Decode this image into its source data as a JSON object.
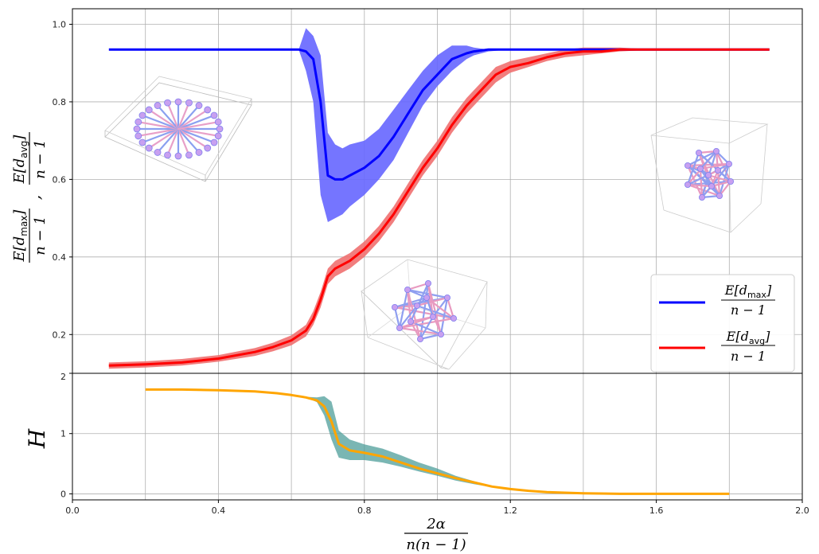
{
  "chart_data": [
    {
      "type": "line",
      "panel": "top",
      "grid": true,
      "xlim": [
        0.0,
        2.0
      ],
      "ylim": [
        0.1,
        1.04
      ],
      "yticks": [
        "0.2",
        "0.4",
        "0.6",
        "0.8",
        "1.0"
      ],
      "ylabel": {
        "num1": "E[d",
        "sub1": "max",
        "close1": "]",
        "den": "n − 1",
        "sep": ",",
        "num2": "E[d",
        "sub2": "avg",
        "close2": "]"
      },
      "legend_position": "lower-right",
      "series": [
        {
          "name": {
            "num": "E[d",
            "sub": "max",
            "close": "]",
            "den": "n − 1"
          },
          "color": "#0000ff",
          "band_color": "#6666ff",
          "x": [
            0.1,
            0.2,
            0.3,
            0.4,
            0.5,
            0.6,
            0.62,
            0.64,
            0.66,
            0.68,
            0.7,
            0.72,
            0.74,
            0.76,
            0.8,
            0.84,
            0.88,
            0.92,
            0.96,
            1.0,
            1.04,
            1.08,
            1.1,
            1.14,
            1.2,
            1.3,
            1.4,
            1.5,
            1.6,
            1.7,
            1.8,
            1.91
          ],
          "y": [
            0.935,
            0.935,
            0.935,
            0.935,
            0.935,
            0.935,
            0.935,
            0.93,
            0.91,
            0.8,
            0.61,
            0.6,
            0.6,
            0.61,
            0.63,
            0.66,
            0.71,
            0.77,
            0.83,
            0.87,
            0.91,
            0.925,
            0.93,
            0.935,
            0.935,
            0.935,
            0.935,
            0.935,
            0.935,
            0.935,
            0.935,
            0.935
          ],
          "lower": [
            0.935,
            0.935,
            0.935,
            0.935,
            0.935,
            0.935,
            0.935,
            0.88,
            0.8,
            0.56,
            0.49,
            0.5,
            0.51,
            0.53,
            0.56,
            0.6,
            0.65,
            0.72,
            0.79,
            0.84,
            0.88,
            0.91,
            0.92,
            0.93,
            0.935,
            0.935,
            0.935,
            0.935,
            0.935,
            0.935,
            0.935,
            0.935
          ],
          "upper": [
            0.935,
            0.935,
            0.935,
            0.935,
            0.935,
            0.935,
            0.935,
            0.99,
            0.97,
            0.92,
            0.72,
            0.69,
            0.68,
            0.69,
            0.7,
            0.73,
            0.78,
            0.83,
            0.88,
            0.92,
            0.945,
            0.945,
            0.94,
            0.935,
            0.935,
            0.935,
            0.935,
            0.935,
            0.935,
            0.935,
            0.935,
            0.935
          ]
        },
        {
          "name": {
            "num": "E[d",
            "sub": "avg",
            "close": "]",
            "den": "n − 1"
          },
          "color": "#ff0000",
          "band_color": "#f07070",
          "x": [
            0.1,
            0.2,
            0.3,
            0.4,
            0.5,
            0.55,
            0.6,
            0.64,
            0.66,
            0.68,
            0.7,
            0.72,
            0.76,
            0.8,
            0.84,
            0.88,
            0.92,
            0.96,
            1.0,
            1.04,
            1.08,
            1.12,
            1.16,
            1.2,
            1.25,
            1.3,
            1.35,
            1.4,
            1.45,
            1.5,
            1.6,
            1.7,
            1.8,
            1.91
          ],
          "y": [
            0.12,
            0.123,
            0.128,
            0.138,
            0.155,
            0.168,
            0.185,
            0.21,
            0.24,
            0.29,
            0.35,
            0.37,
            0.39,
            0.42,
            0.46,
            0.51,
            0.57,
            0.63,
            0.68,
            0.74,
            0.79,
            0.83,
            0.87,
            0.89,
            0.9,
            0.915,
            0.925,
            0.93,
            0.93,
            0.935,
            0.935,
            0.935,
            0.935,
            0.935
          ],
          "lower": [
            0.112,
            0.115,
            0.12,
            0.13,
            0.145,
            0.157,
            0.172,
            0.195,
            0.225,
            0.27,
            0.33,
            0.35,
            0.37,
            0.4,
            0.44,
            0.49,
            0.55,
            0.61,
            0.66,
            0.72,
            0.77,
            0.81,
            0.85,
            0.875,
            0.89,
            0.905,
            0.915,
            0.92,
            0.925,
            0.93,
            0.935,
            0.935,
            0.935,
            0.935
          ],
          "upper": [
            0.128,
            0.131,
            0.137,
            0.147,
            0.165,
            0.179,
            0.198,
            0.225,
            0.26,
            0.31,
            0.37,
            0.39,
            0.41,
            0.44,
            0.48,
            0.53,
            0.59,
            0.65,
            0.7,
            0.76,
            0.81,
            0.85,
            0.89,
            0.905,
            0.915,
            0.925,
            0.935,
            0.94,
            0.94,
            0.94,
            0.935,
            0.935,
            0.935,
            0.935
          ]
        }
      ]
    },
    {
      "type": "line",
      "panel": "bottom",
      "grid": true,
      "xlim": [
        0.0,
        2.0
      ],
      "ylim": [
        -0.1,
        2.0
      ],
      "xticks": [
        "0.0",
        "0.4",
        "0.8",
        "1.2",
        "1.6",
        "2.0"
      ],
      "yticks": [
        "0",
        "1",
        "2"
      ],
      "ylabel": "H",
      "xlabel": {
        "num": "2α",
        "den": "n(n − 1)"
      },
      "series": [
        {
          "color": "#ffa500",
          "band_color": "#4e9e9a",
          "x": [
            0.2,
            0.3,
            0.4,
            0.5,
            0.56,
            0.6,
            0.64,
            0.67,
            0.69,
            0.71,
            0.73,
            0.76,
            0.8,
            0.85,
            0.9,
            0.95,
            1.0,
            1.05,
            1.1,
            1.15,
            1.2,
            1.25,
            1.3,
            1.4,
            1.5,
            1.6,
            1.7,
            1.8
          ],
          "y": [
            1.73,
            1.73,
            1.72,
            1.7,
            1.67,
            1.64,
            1.6,
            1.55,
            1.45,
            1.2,
            0.83,
            0.72,
            0.68,
            0.62,
            0.52,
            0.42,
            0.34,
            0.26,
            0.19,
            0.12,
            0.08,
            0.05,
            0.03,
            0.01,
            0.0,
            0.0,
            0.0,
            0.0
          ],
          "lower": [
            1.73,
            1.73,
            1.72,
            1.7,
            1.67,
            1.64,
            1.6,
            1.52,
            1.3,
            0.9,
            0.6,
            0.56,
            0.56,
            0.52,
            0.45,
            0.37,
            0.3,
            0.22,
            0.16,
            0.11,
            0.08,
            0.05,
            0.03,
            0.01,
            0.0,
            0.0,
            0.0,
            0.0
          ],
          "upper": [
            1.73,
            1.73,
            1.72,
            1.7,
            1.67,
            1.64,
            1.61,
            1.6,
            1.62,
            1.53,
            1.05,
            0.9,
            0.82,
            0.75,
            0.64,
            0.52,
            0.42,
            0.3,
            0.21,
            0.13,
            0.08,
            0.05,
            0.03,
            0.01,
            0.0,
            0.0,
            0.0,
            0.0
          ]
        }
      ]
    }
  ],
  "insets": [
    "star-graph-icon",
    "dense-graph-icon",
    "cluster-graph-icon",
    "complete-graph-icon"
  ]
}
